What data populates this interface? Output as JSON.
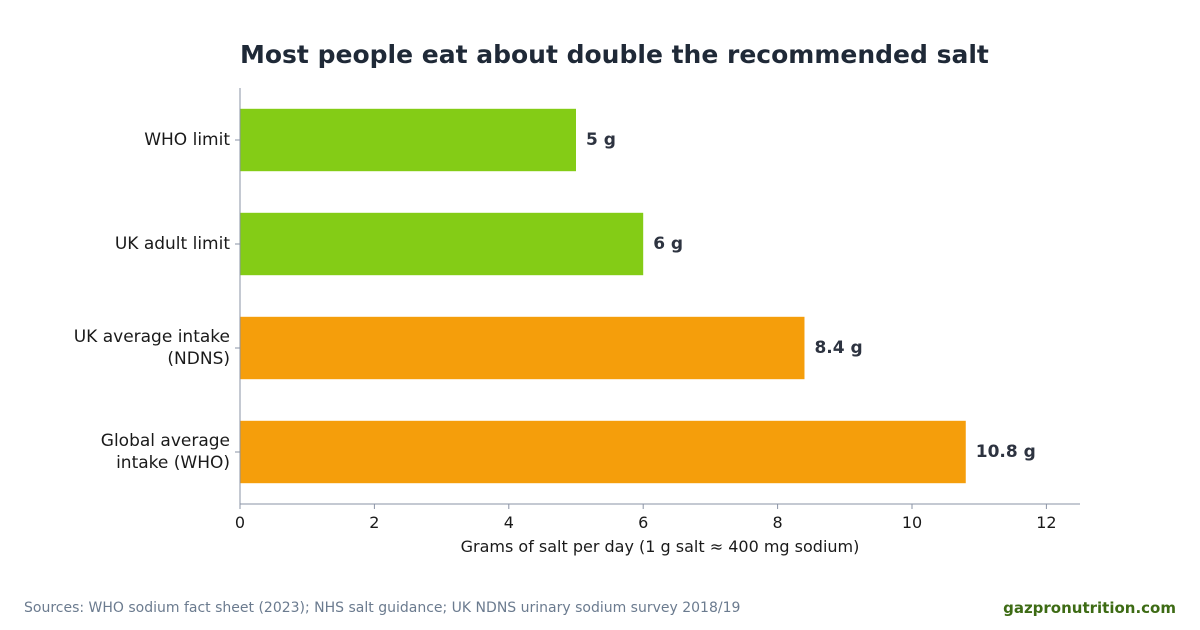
{
  "chart_data": {
    "type": "bar",
    "orientation": "horizontal",
    "title": "Most people eat about double the recommended salt",
    "xlabel": "Grams of salt per day (1 g salt ≈ 400 mg sodium)",
    "ylabel": "",
    "xlim": [
      0,
      12.5
    ],
    "xticks": [
      "0",
      "2",
      "4",
      "6",
      "8",
      "10",
      "12"
    ],
    "xtick_values": [
      0,
      2,
      4,
      6,
      8,
      10,
      12
    ],
    "grid": false,
    "categories": [
      [
        "WHO limit"
      ],
      [
        "UK adult limit"
      ],
      [
        "UK average intake",
        "(NDNS)"
      ],
      [
        "Global average",
        "intake (WHO)"
      ]
    ],
    "values": [
      5,
      6,
      8.4,
      10.8
    ],
    "data_labels": [
      "5 g",
      "6 g",
      "8.4 g",
      "10.8 g"
    ],
    "colors": [
      "#84cc16",
      "#84cc16",
      "#f59e0b",
      "#f59e0b"
    ]
  },
  "footer": {
    "source": "Sources: WHO sodium fact sheet (2023); NHS salt guidance; UK NDNS urinary sodium survey 2018/19",
    "brand": "gazpronutrition.com"
  },
  "colors": {
    "title": "#1f2937",
    "axis": "#8a93a6",
    "label": "#2d3340",
    "source": "#6b7b8f",
    "brand": "#3d6b14"
  }
}
